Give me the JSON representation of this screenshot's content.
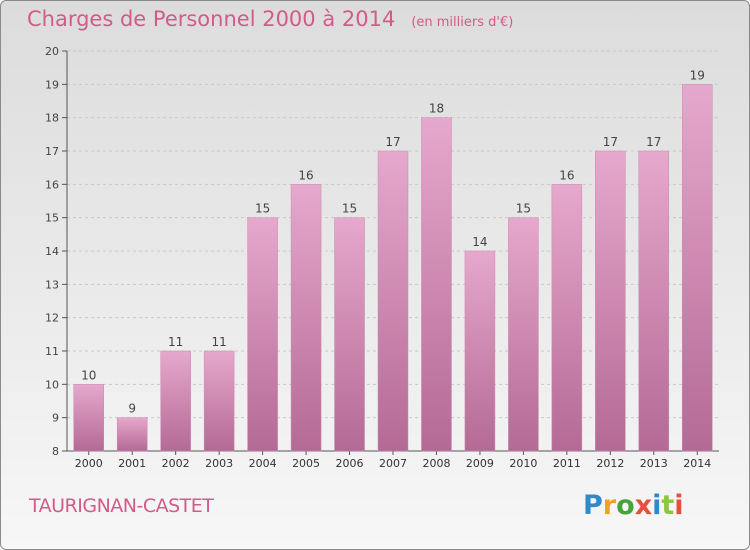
{
  "title": "Charges de Personnel 2000 à 2014",
  "unit": "(en milliers d'€)",
  "commune": "TAURIGNAN-CASTET",
  "logo": {
    "letters": [
      "P",
      "r",
      "o",
      "x",
      "i",
      "t",
      "i"
    ],
    "colors": [
      "#2f8ac9",
      "#f2a31b",
      "#47a43a",
      "#e84d3d",
      "#2f8ac9",
      "#8cc63f",
      "#e84d3d"
    ]
  },
  "colors": {
    "accent": "#d35a8a",
    "bar_top": "#e6a8cc",
    "bar_bottom": "#b46a95"
  },
  "chart_data": {
    "type": "bar",
    "categories": [
      "2000",
      "2001",
      "2002",
      "2003",
      "2004",
      "2005",
      "2006",
      "2007",
      "2008",
      "2009",
      "2010",
      "2011",
      "2012",
      "2013",
      "2014"
    ],
    "values": [
      10,
      9,
      11,
      11,
      15,
      16,
      15,
      17,
      18,
      14,
      15,
      16,
      17,
      17,
      19
    ],
    "data_labels": [
      "10",
      "9",
      "11",
      "11",
      "15",
      "16",
      "15",
      "17",
      "18",
      "14",
      "15",
      "16",
      "17",
      "17",
      "19"
    ],
    "ylim": [
      8,
      20
    ],
    "yticks": [
      8,
      9,
      10,
      11,
      12,
      13,
      14,
      15,
      16,
      17,
      18,
      19,
      20
    ],
    "grid": true
  }
}
